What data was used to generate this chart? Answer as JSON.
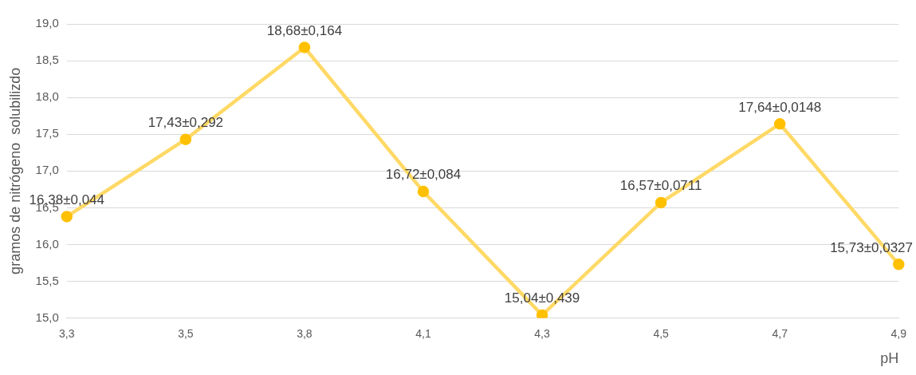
{
  "chart_data": {
    "type": "line",
    "xlabel": "pH",
    "ylabel": "gramos de nitrógeno  solubilizdo",
    "categories": [
      "3,3",
      "3,5",
      "3,8",
      "4,1",
      "4,3",
      "4,5",
      "4,7",
      "4,9"
    ],
    "series": [
      {
        "color": "#ffd966",
        "values": [
          16.38,
          17.43,
          18.68,
          16.72,
          15.04,
          16.57,
          17.64,
          15.73
        ],
        "value_labels": [
          "16,38±0,044",
          "17,43±0,292",
          "18,68±0,164",
          "16,72±0,084",
          "15,04±0,439",
          "16,57±0,0711",
          "17,64±0,0148",
          "15,73±0,0327"
        ]
      }
    ],
    "ylim": [
      15,
      19
    ],
    "yticks": [
      {
        "value": 15,
        "label": "15,0"
      },
      {
        "value": 15.5,
        "label": "15,5"
      },
      {
        "value": 16,
        "label": "16,0"
      },
      {
        "value": 16.5,
        "label": "16,5"
      },
      {
        "value": 17,
        "label": "17,0"
      },
      {
        "value": 17.5,
        "label": "17,5"
      },
      {
        "value": 18,
        "label": "18,0"
      },
      {
        "value": 18.5,
        "label": "18,5"
      },
      {
        "value": 19,
        "label": "19,0"
      }
    ],
    "grid": "y",
    "legend": false,
    "marker": "circle",
    "line_style": "solid"
  }
}
